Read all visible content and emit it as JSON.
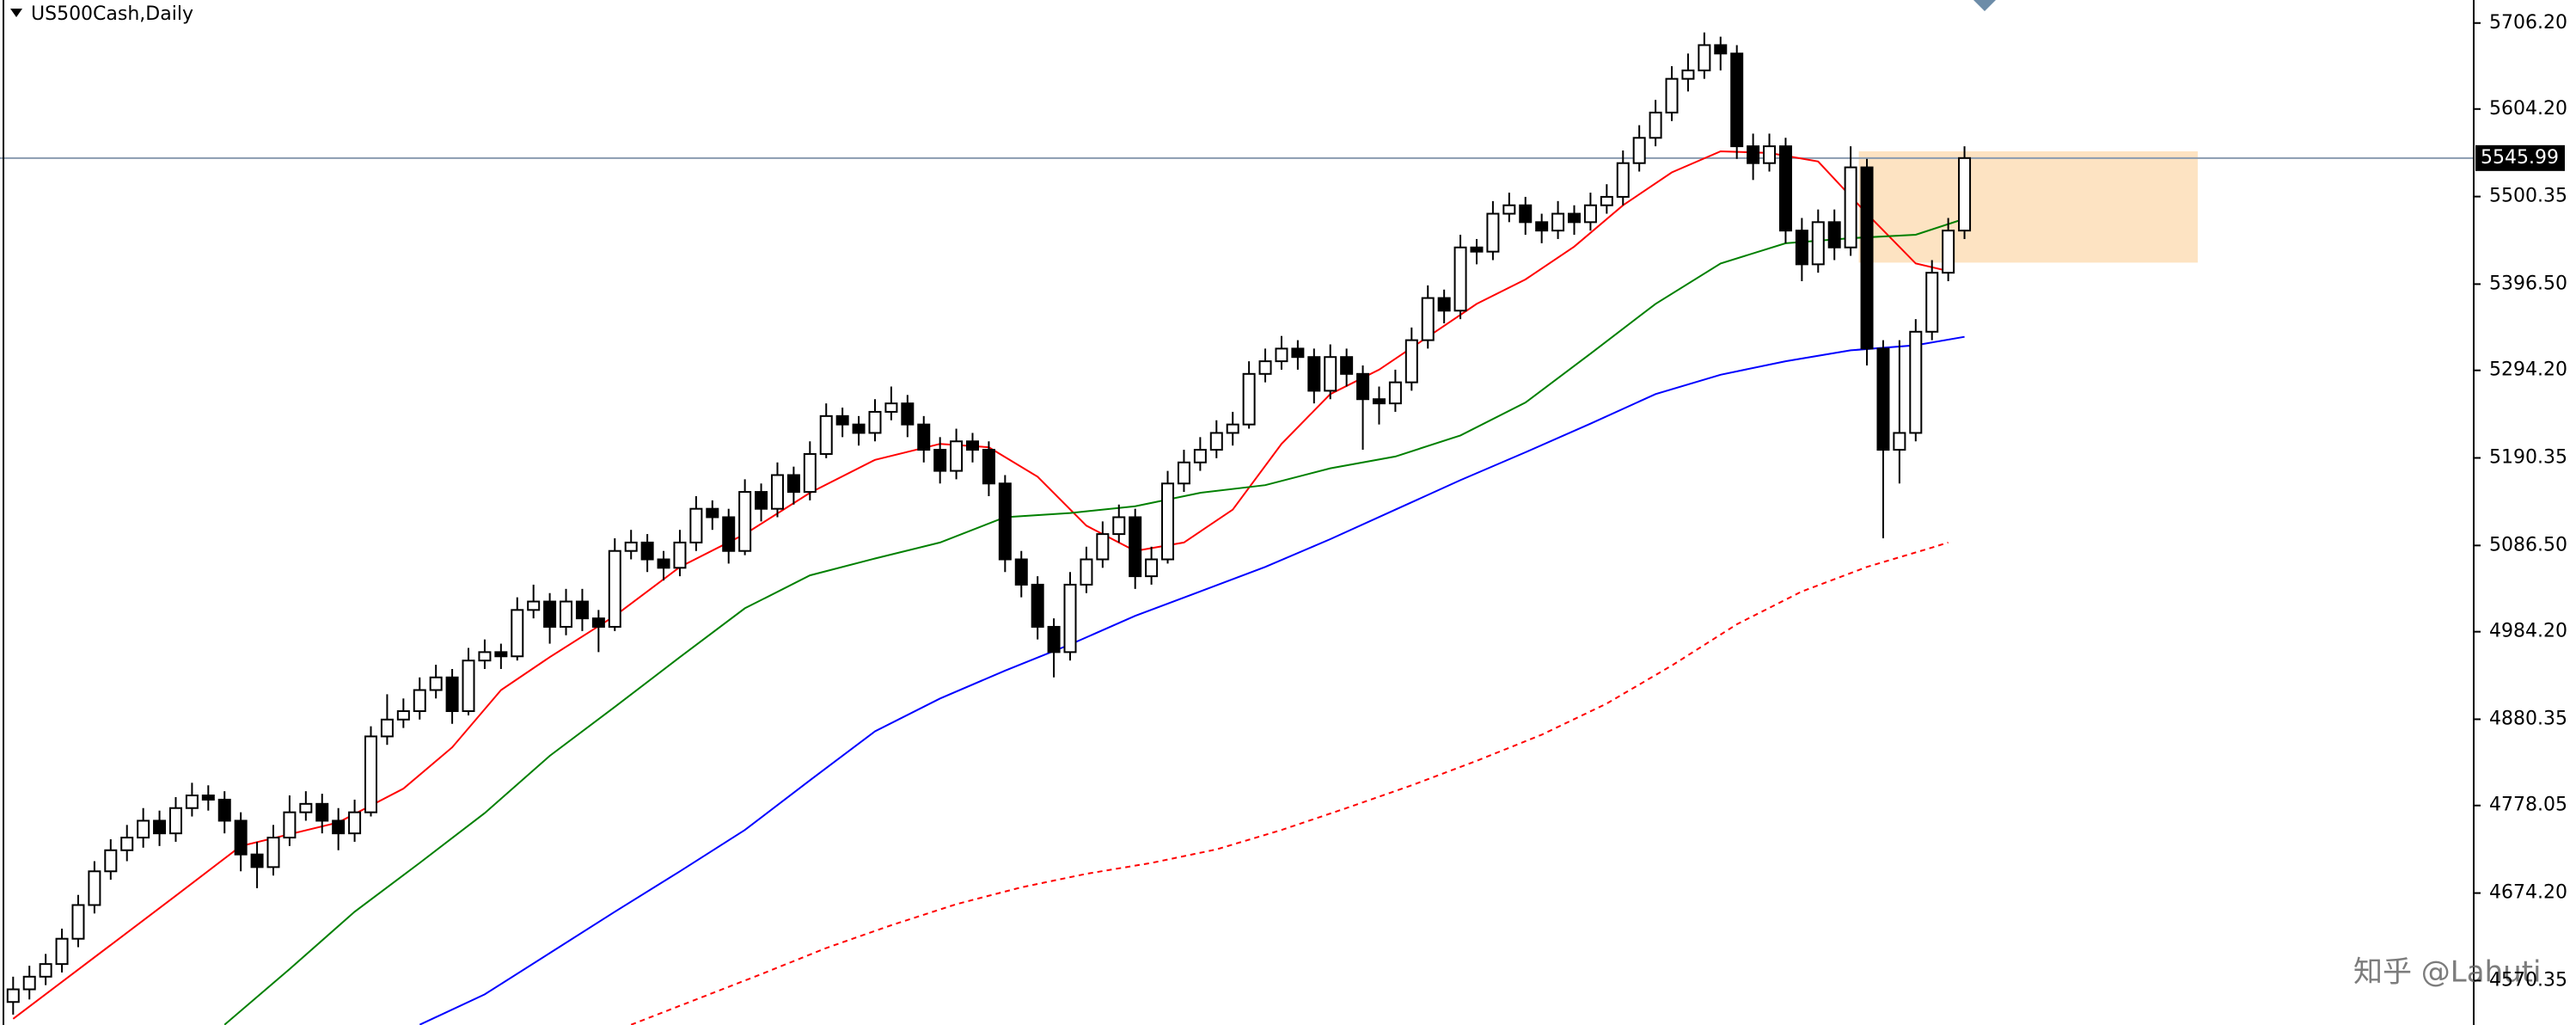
{
  "chart_data": {
    "type": "candlestick",
    "title": "US500Cash,Daily",
    "watermark": "知乎 @Lahuti",
    "ylim": [
      4517.7,
      5733.5
    ],
    "yticks": [
      {
        "value": 5706.2,
        "label": "5706.20"
      },
      {
        "value": 5604.2,
        "label": "5604.20"
      },
      {
        "value": 5500.35,
        "label": "5500.35"
      },
      {
        "value": 5396.5,
        "label": "5396.50"
      },
      {
        "value": 5294.2,
        "label": "5294.20"
      },
      {
        "value": 5190.35,
        "label": "5190.35"
      },
      {
        "value": 5086.5,
        "label": "5086.50"
      },
      {
        "value": 4984.2,
        "label": "4984.20"
      },
      {
        "value": 4880.35,
        "label": "4880.35"
      },
      {
        "value": 4778.05,
        "label": "4778.05"
      },
      {
        "value": 4674.2,
        "label": "4674.20"
      },
      {
        "value": 4570.35,
        "label": "4570.35"
      }
    ],
    "bid": 5545.99,
    "zone": [
      5422,
      5554
    ],
    "zone_color": "#fde3c2",
    "up_color": "#ffffff",
    "down_color": "#000000",
    "ohlc": [
      [
        4545,
        4575,
        4530,
        4560
      ],
      [
        4560,
        4588,
        4548,
        4575
      ],
      [
        4575,
        4602,
        4565,
        4590
      ],
      [
        4590,
        4632,
        4580,
        4620
      ],
      [
        4620,
        4672,
        4610,
        4660
      ],
      [
        4660,
        4712,
        4650,
        4700
      ],
      [
        4700,
        4738,
        4690,
        4725
      ],
      [
        4725,
        4755,
        4712,
        4740
      ],
      [
        4740,
        4775,
        4728,
        4760
      ],
      [
        4760,
        4772,
        4730,
        4745
      ],
      [
        4745,
        4788,
        4735,
        4775
      ],
      [
        4775,
        4805,
        4765,
        4790
      ],
      [
        4790,
        4802,
        4772,
        4785
      ],
      [
        4785,
        4795,
        4745,
        4760
      ],
      [
        4760,
        4770,
        4700,
        4720
      ],
      [
        4720,
        4735,
        4680,
        4705
      ],
      [
        4705,
        4755,
        4695,
        4740
      ],
      [
        4740,
        4790,
        4730,
        4770
      ],
      [
        4770,
        4795,
        4760,
        4780
      ],
      [
        4780,
        4792,
        4745,
        4760
      ],
      [
        4760,
        4775,
        4725,
        4745
      ],
      [
        4745,
        4785,
        4735,
        4770
      ],
      [
        4770,
        4872,
        4765,
        4860
      ],
      [
        4860,
        4910,
        4850,
        4880
      ],
      [
        4880,
        4905,
        4870,
        4890
      ],
      [
        4890,
        4930,
        4880,
        4915
      ],
      [
        4915,
        4945,
        4905,
        4930
      ],
      [
        4930,
        4940,
        4875,
        4890
      ],
      [
        4890,
        4965,
        4885,
        4950
      ],
      [
        4950,
        4975,
        4940,
        4960
      ],
      [
        4960,
        4970,
        4940,
        4955
      ],
      [
        4955,
        5025,
        4950,
        5010
      ],
      [
        5010,
        5040,
        5000,
        5020
      ],
      [
        5020,
        5030,
        4970,
        4990
      ],
      [
        4990,
        5035,
        4980,
        5020
      ],
      [
        5020,
        5035,
        4985,
        5000
      ],
      [
        5000,
        5010,
        4960,
        4990
      ],
      [
        4990,
        5095,
        4985,
        5080
      ],
      [
        5080,
        5105,
        5070,
        5090
      ],
      [
        5090,
        5100,
        5055,
        5070
      ],
      [
        5070,
        5080,
        5045,
        5060
      ],
      [
        5060,
        5105,
        5050,
        5090
      ],
      [
        5090,
        5145,
        5080,
        5130
      ],
      [
        5130,
        5140,
        5105,
        5120
      ],
      [
        5120,
        5130,
        5065,
        5080
      ],
      [
        5080,
        5165,
        5075,
        5150
      ],
      [
        5150,
        5160,
        5115,
        5130
      ],
      [
        5130,
        5185,
        5120,
        5170
      ],
      [
        5170,
        5180,
        5135,
        5150
      ],
      [
        5150,
        5210,
        5140,
        5195
      ],
      [
        5195,
        5255,
        5190,
        5240
      ],
      [
        5240,
        5250,
        5215,
        5230
      ],
      [
        5230,
        5240,
        5205,
        5220
      ],
      [
        5220,
        5260,
        5210,
        5245
      ],
      [
        5245,
        5275,
        5235,
        5255
      ],
      [
        5255,
        5265,
        5215,
        5230
      ],
      [
        5230,
        5240,
        5185,
        5200
      ],
      [
        5200,
        5215,
        5160,
        5175
      ],
      [
        5175,
        5225,
        5165,
        5210
      ],
      [
        5210,
        5220,
        5185,
        5200
      ],
      [
        5200,
        5210,
        5145,
        5160
      ],
      [
        5160,
        5170,
        5055,
        5070
      ],
      [
        5070,
        5080,
        5025,
        5040
      ],
      [
        5040,
        5050,
        4975,
        4990
      ],
      [
        4990,
        5000,
        4930,
        4960
      ],
      [
        4960,
        5055,
        4950,
        5040
      ],
      [
        5040,
        5085,
        5030,
        5070
      ],
      [
        5070,
        5115,
        5060,
        5100
      ],
      [
        5100,
        5135,
        5090,
        5120
      ],
      [
        5120,
        5130,
        5035,
        5050
      ],
      [
        5050,
        5085,
        5040,
        5070
      ],
      [
        5070,
        5175,
        5065,
        5160
      ],
      [
        5160,
        5200,
        5150,
        5185
      ],
      [
        5185,
        5215,
        5175,
        5200
      ],
      [
        5200,
        5235,
        5190,
        5220
      ],
      [
        5220,
        5245,
        5205,
        5230
      ],
      [
        5230,
        5305,
        5225,
        5290
      ],
      [
        5290,
        5320,
        5280,
        5305
      ],
      [
        5305,
        5335,
        5295,
        5320
      ],
      [
        5320,
        5330,
        5295,
        5310
      ],
      [
        5310,
        5320,
        5255,
        5270
      ],
      [
        5270,
        5325,
        5260,
        5310
      ],
      [
        5310,
        5320,
        5275,
        5290
      ],
      [
        5290,
        5300,
        5200,
        5260
      ],
      [
        5260,
        5275,
        5230,
        5255
      ],
      [
        5255,
        5295,
        5245,
        5280
      ],
      [
        5280,
        5345,
        5270,
        5330
      ],
      [
        5330,
        5395,
        5320,
        5380
      ],
      [
        5380,
        5390,
        5350,
        5365
      ],
      [
        5365,
        5455,
        5355,
        5440
      ],
      [
        5440,
        5450,
        5420,
        5435
      ],
      [
        5435,
        5495,
        5425,
        5480
      ],
      [
        5480,
        5505,
        5470,
        5490
      ],
      [
        5490,
        5500,
        5455,
        5470
      ],
      [
        5470,
        5480,
        5445,
        5460
      ],
      [
        5460,
        5495,
        5450,
        5480
      ],
      [
        5480,
        5490,
        5455,
        5470
      ],
      [
        5470,
        5505,
        5460,
        5490
      ],
      [
        5490,
        5515,
        5480,
        5500
      ],
      [
        5500,
        5555,
        5490,
        5540
      ],
      [
        5540,
        5585,
        5530,
        5570
      ],
      [
        5570,
        5615,
        5560,
        5600
      ],
      [
        5600,
        5655,
        5590,
        5640
      ],
      [
        5640,
        5670,
        5625,
        5650
      ],
      [
        5650,
        5695,
        5640,
        5680
      ],
      [
        5680,
        5690,
        5650,
        5670
      ],
      [
        5670,
        5680,
        5545,
        5560
      ],
      [
        5560,
        5575,
        5520,
        5540
      ],
      [
        5540,
        5575,
        5530,
        5560
      ],
      [
        5560,
        5570,
        5445,
        5460
      ],
      [
        5460,
        5475,
        5400,
        5420
      ],
      [
        5420,
        5485,
        5410,
        5470
      ],
      [
        5470,
        5485,
        5425,
        5440
      ],
      [
        5440,
        5560,
        5430,
        5535
      ],
      [
        5535,
        5545,
        5300,
        5320
      ],
      [
        5320,
        5330,
        5095,
        5200
      ],
      [
        5200,
        5330,
        5160,
        5220
      ],
      [
        5220,
        5355,
        5210,
        5340
      ],
      [
        5340,
        5425,
        5330,
        5410
      ],
      [
        5410,
        5475,
        5400,
        5460
      ],
      [
        5460,
        5560,
        5450,
        5546
      ]
    ],
    "lines": [
      {
        "color": "#ff0000",
        "dash": false,
        "x": [
          0,
          10,
          14,
          20,
          24,
          27,
          30,
          33,
          37,
          41,
          45,
          49,
          53,
          57,
          60,
          63,
          66,
          69,
          72,
          75,
          78,
          81,
          84,
          87,
          90,
          93,
          96,
          99,
          102,
          105,
          108,
          111,
          114,
          117,
          119
        ],
        "values": [
          4525,
          4671,
          4730,
          4758,
          4798,
          4847,
          4915,
          4954,
          5003,
          5061,
          5100,
          5149,
          5188,
          5207,
          5203,
          5168,
          5110,
          5080,
          5090,
          5129,
          5207,
          5266,
          5295,
          5334,
          5373,
          5402,
          5441,
          5490,
          5529,
          5554,
          5552,
          5542,
          5480,
          5421,
          5412
        ]
      },
      {
        "color": "#008000",
        "dash": false,
        "x": [
          13,
          17,
          21,
          25,
          29,
          33,
          37,
          41,
          45,
          49,
          53,
          57,
          61,
          65,
          69,
          73,
          77,
          81,
          85,
          89,
          93,
          97,
          101,
          105,
          109,
          113,
          117,
          120
        ],
        "values": [
          4518,
          4584,
          4652,
          4710,
          4769,
          4837,
          4895,
          4954,
          5012,
          5051,
          5071,
          5090,
          5120,
          5125,
          5133,
          5149,
          5158,
          5178,
          5192,
          5217,
          5256,
          5314,
          5373,
          5421,
          5445,
          5451,
          5455,
          5474
        ]
      },
      {
        "color": "#0000ff",
        "dash": false,
        "x": [
          25,
          29,
          33,
          37,
          41,
          45,
          49,
          53,
          57,
          61,
          65,
          69,
          73,
          77,
          81,
          85,
          89,
          93,
          97,
          101,
          105,
          109,
          113,
          117,
          120
        ],
        "values": [
          4518,
          4554,
          4603,
          4652,
          4700,
          4749,
          4808,
          4866,
          4905,
          4938,
          4969,
          5003,
          5032,
          5061,
          5094,
          5129,
          5164,
          5197,
          5231,
          5266,
          5289,
          5305,
          5318,
          5324,
          5334
        ]
      },
      {
        "color": "#ff0000",
        "dash": true,
        "x": [
          38,
          42,
          46,
          50,
          54,
          58,
          62,
          66,
          70,
          74,
          78,
          82,
          86,
          90,
          94,
          98,
          102,
          106,
          110,
          114,
          118,
          119
        ],
        "values": [
          4518,
          4548,
          4578,
          4609,
          4636,
          4661,
          4681,
          4697,
          4710,
          4726,
          4749,
          4775,
          4802,
          4831,
          4862,
          4899,
          4944,
          4993,
          5032,
          5061,
          5084,
          5090
        ]
      }
    ]
  }
}
